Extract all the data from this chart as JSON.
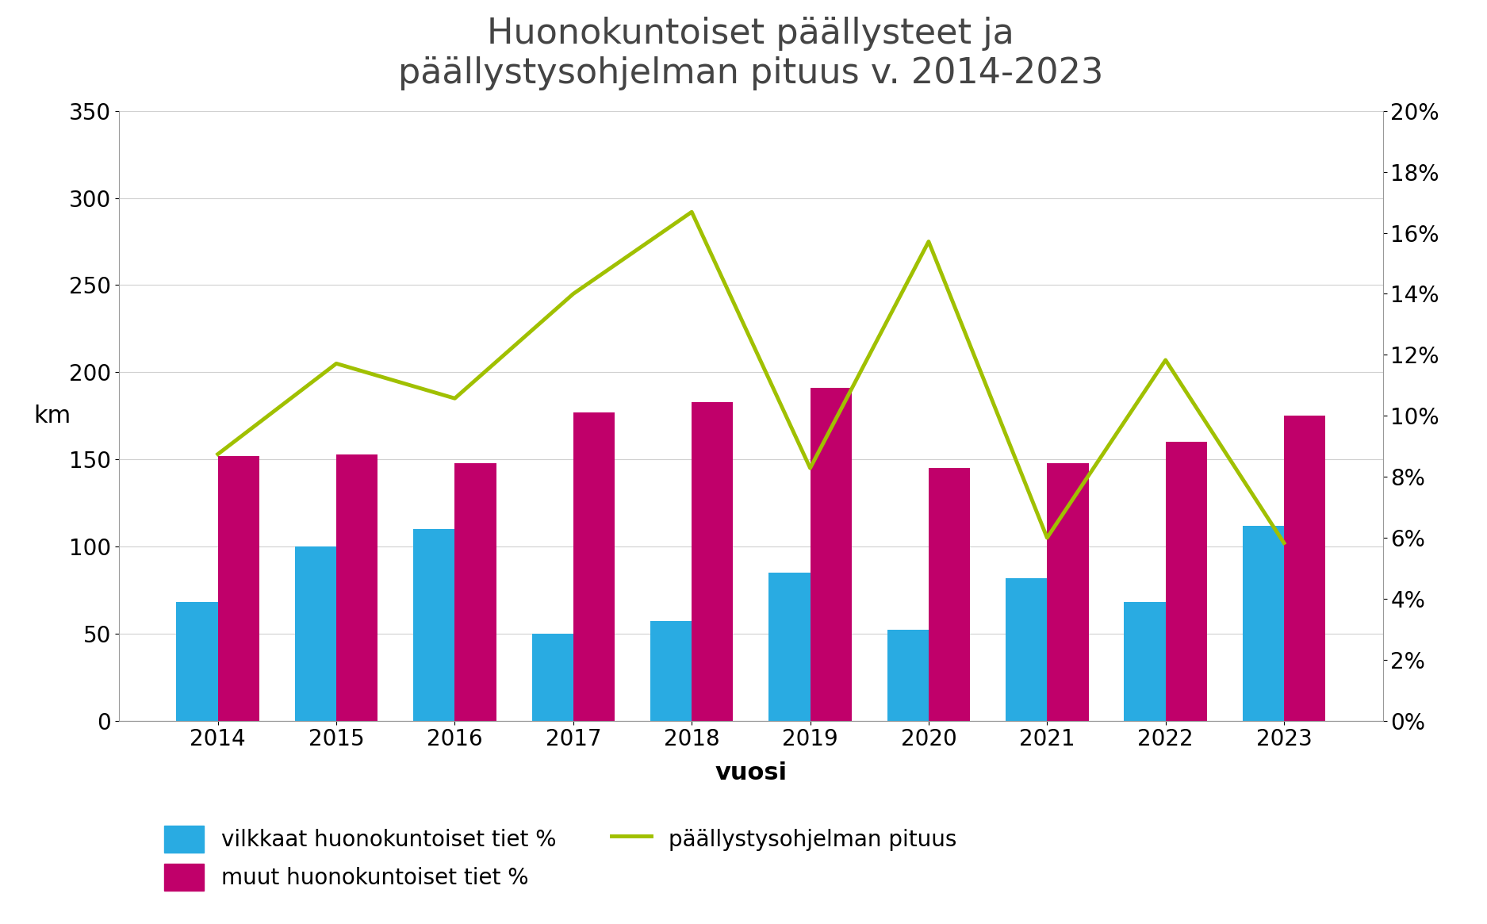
{
  "title": "Huonokuntoiset päällysteet ja\npäällystysohjelman pituus v. 2014-2023",
  "years": [
    2014,
    2015,
    2016,
    2017,
    2018,
    2019,
    2020,
    2021,
    2022,
    2023
  ],
  "blue_bars": [
    68,
    100,
    110,
    50,
    57,
    85,
    52,
    82,
    68,
    112
  ],
  "magenta_bars": [
    152,
    153,
    148,
    177,
    183,
    191,
    145,
    148,
    160,
    175
  ],
  "green_line": [
    153,
    205,
    185,
    245,
    292,
    145,
    275,
    105,
    207,
    102
  ],
  "blue_color": "#29ABE2",
  "magenta_color": "#C0006A",
  "green_color": "#A0C000",
  "ylabel_left": "km",
  "xlabel": "vuosi",
  "ylim_left": [
    0,
    350
  ],
  "yticks_left": [
    0,
    50,
    100,
    150,
    200,
    250,
    300,
    350
  ],
  "yticks_right_vals": [
    0,
    2,
    4,
    6,
    8,
    10,
    12,
    14,
    16,
    18,
    20
  ],
  "legend_blue": "vilkkaat huonokuntoiset tiet %",
  "legend_magenta": "muut huonokuntoiset tiet %",
  "legend_green": "päällystysohjelman pituus",
  "background_color": "#FFFFFF",
  "bar_width": 0.35,
  "title_fontsize": 32,
  "axis_label_fontsize": 22,
  "tick_fontsize": 20,
  "legend_fontsize": 20,
  "grid_color": "#D0D0D0"
}
